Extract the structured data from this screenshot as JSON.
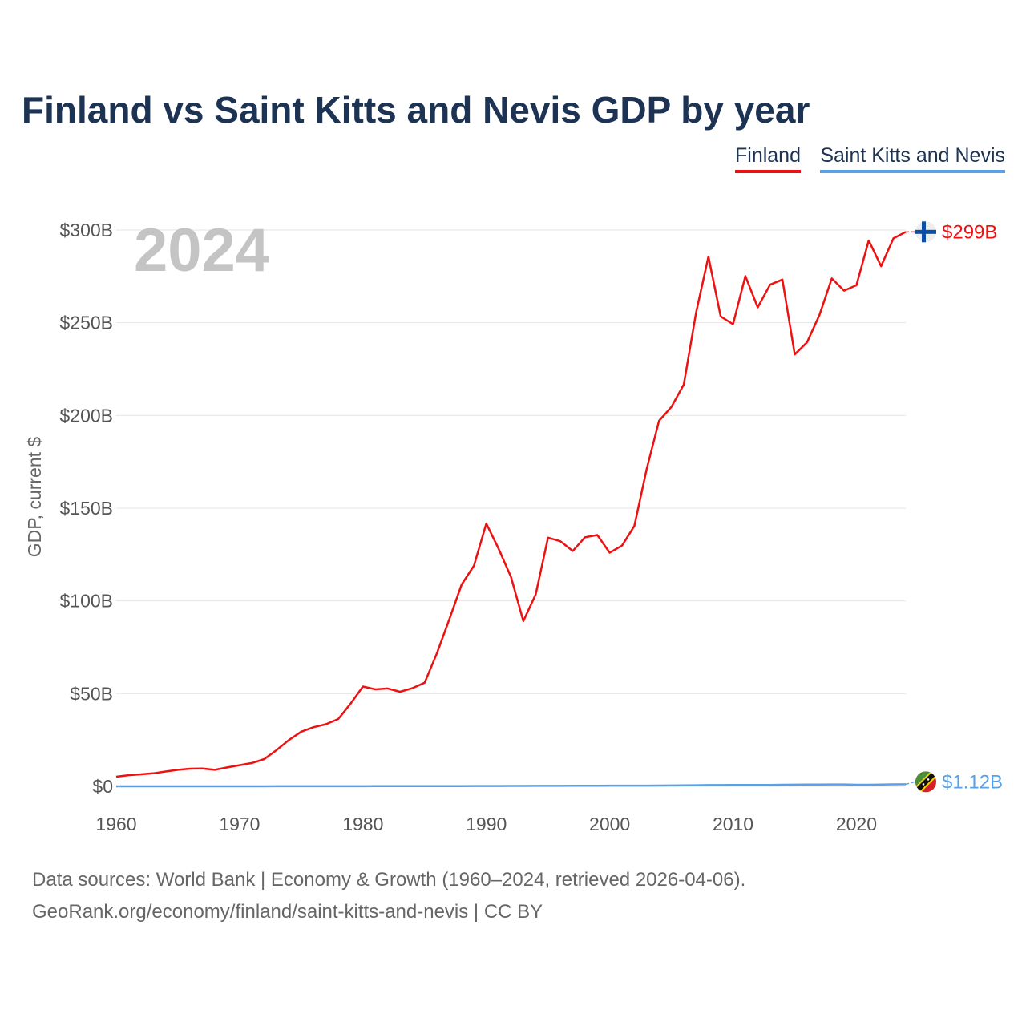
{
  "chart_data": {
    "type": "line",
    "title": "Finland vs Saint Kitts and Nevis GDP by year",
    "xlabel": "",
    "ylabel": "GDP, current $",
    "current_year_label": "2024",
    "xlim": [
      1960,
      2024
    ],
    "ylim": [
      0,
      300
    ],
    "y_unit": "billions USD",
    "x_ticks": [
      1960,
      1970,
      1980,
      1990,
      2000,
      2010,
      2020
    ],
    "x_tick_labels": [
      "1960",
      "1970",
      "1980",
      "1990",
      "2000",
      "2010",
      "2020"
    ],
    "y_ticks": [
      0,
      50,
      100,
      150,
      200,
      250,
      300
    ],
    "y_tick_labels": [
      "$0",
      "$50B",
      "$100B",
      "$150B",
      "$200B",
      "$250B",
      "$300B"
    ],
    "grid": true,
    "legend_position": "top-right",
    "x": [
      1960,
      1961,
      1962,
      1963,
      1964,
      1965,
      1966,
      1967,
      1968,
      1969,
      1970,
      1971,
      1972,
      1973,
      1974,
      1975,
      1976,
      1977,
      1978,
      1979,
      1980,
      1981,
      1982,
      1983,
      1984,
      1985,
      1986,
      1987,
      1988,
      1989,
      1990,
      1991,
      1992,
      1993,
      1994,
      1995,
      1996,
      1997,
      1998,
      1999,
      2000,
      2001,
      2002,
      2003,
      2004,
      2005,
      2006,
      2007,
      2008,
      2009,
      2010,
      2011,
      2012,
      2013,
      2014,
      2015,
      2016,
      2017,
      2018,
      2019,
      2020,
      2021,
      2022,
      2023,
      2024
    ],
    "series": [
      {
        "name": "Finland",
        "color": "#ee1111",
        "end_label": "$299B",
        "flag_icon": "finland-flag-icon",
        "values": [
          5.2,
          6.0,
          6.5,
          7.0,
          8.0,
          8.9,
          9.5,
          9.6,
          8.9,
          10.2,
          11.4,
          12.6,
          14.7,
          19.6,
          25.0,
          29.5,
          31.9,
          33.5,
          36.3,
          44.6,
          53.8,
          52.3,
          52.8,
          51.0,
          52.9,
          55.9,
          71.9,
          90.0,
          108.8,
          119.0,
          141.7,
          128.1,
          112.9,
          89.1,
          103.5,
          134.1,
          132.2,
          126.9,
          134.3,
          135.5,
          126.0,
          129.8,
          140.4,
          171.2,
          197.1,
          204.6,
          216.6,
          255.4,
          285.7,
          253.4,
          249.2,
          275.2,
          258.3,
          270.5,
          273.3,
          232.9,
          239.5,
          254.2,
          273.9,
          267.3,
          270.2,
          294.4,
          280.5,
          295.5,
          299.0
        ]
      },
      {
        "name": "Saint Kitts and Nevis",
        "color": "#5aa0e6",
        "end_label": "$1.12B",
        "flag_icon": "saint-kitts-and-nevis-flag-icon",
        "values": [
          0.01,
          0.01,
          0.01,
          0.01,
          0.01,
          0.01,
          0.01,
          0.01,
          0.01,
          0.01,
          0.02,
          0.02,
          0.02,
          0.03,
          0.03,
          0.03,
          0.03,
          0.04,
          0.04,
          0.05,
          0.06,
          0.07,
          0.07,
          0.07,
          0.08,
          0.09,
          0.1,
          0.12,
          0.14,
          0.16,
          0.18,
          0.19,
          0.2,
          0.22,
          0.24,
          0.26,
          0.28,
          0.31,
          0.33,
          0.35,
          0.37,
          0.39,
          0.4,
          0.41,
          0.44,
          0.48,
          0.53,
          0.6,
          0.68,
          0.71,
          0.72,
          0.75,
          0.76,
          0.79,
          0.87,
          0.92,
          0.96,
          0.99,
          1.02,
          1.05,
          0.87,
          0.87,
          1.0,
          1.08,
          1.12
        ]
      }
    ]
  },
  "footer": {
    "source": "Data sources: World Bank | Economy & Growth (1960–2024, retrieved 2026-04-06).",
    "credit": "GeoRank.org/economy/finland/saint-kitts-and-nevis | CC BY"
  }
}
